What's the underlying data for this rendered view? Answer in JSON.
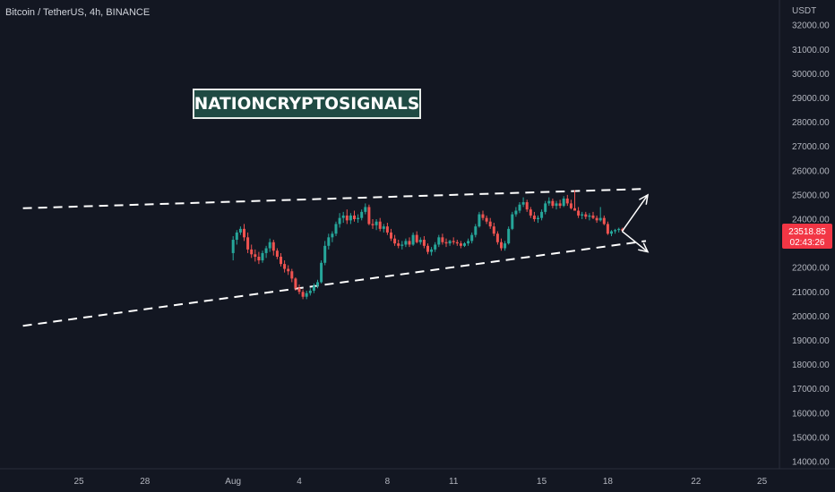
{
  "header": {
    "symbol_title": "Bitcoin / TetherUS, 4h, BINANCE"
  },
  "watermark": {
    "text": "NATIONCRYPTOSIGNALS"
  },
  "price_tag": {
    "price": "23518.85",
    "countdown": "02:43:26",
    "color": "#f23645"
  },
  "colors": {
    "background": "#131722",
    "up": "#26a69a",
    "down": "#ef5350",
    "axis_text": "#b2b5be"
  },
  "chart_data": {
    "type": "candlestick",
    "title": "Bitcoin / TetherUS, 4h, BINANCE",
    "y_unit": "USDT",
    "ylim": [
      14000,
      32000
    ],
    "y_ticks": [
      14000,
      15000,
      16000,
      17000,
      18000,
      19000,
      20000,
      21000,
      22000,
      23000,
      24000,
      25000,
      26000,
      27000,
      28000,
      29000,
      30000,
      31000,
      32000
    ],
    "x_tick_labels": [
      "25",
      "28",
      "Aug",
      "4",
      "8",
      "11",
      "15",
      "18",
      "22",
      "25"
    ],
    "x_tick_dates": [
      "2022-07-25",
      "2022-07-28",
      "2022-08-01",
      "2022-08-04",
      "2022-08-08",
      "2022-08-11",
      "2022-08-15",
      "2022-08-18",
      "2022-08-22",
      "2022-08-25"
    ],
    "last_price": 23518.85,
    "trendlines": {
      "upper": {
        "start": [
          "2022-07-21",
          24450
        ],
        "end": [
          "2022-08-19",
          25250
        ],
        "style": "dashed"
      },
      "lower": {
        "start": [
          "2022-07-21",
          19600
        ],
        "end": [
          "2022-08-19",
          23100
        ],
        "style": "dashed"
      }
    },
    "arrows": [
      {
        "from": [
          "2022-08-18",
          23500
        ],
        "to": [
          "2022-08-19",
          25000
        ]
      },
      {
        "from": [
          "2022-08-18",
          23500
        ],
        "to": [
          "2022-08-19",
          22650
        ]
      }
    ],
    "series": [
      {
        "values": [
          [
            22600,
            23300,
            22300,
            23150
          ],
          [
            23150,
            23550,
            22950,
            23450
          ],
          [
            23450,
            23700,
            23350,
            23600
          ],
          [
            23600,
            23800,
            23100,
            23250
          ],
          [
            23250,
            23450,
            22600,
            22750
          ],
          [
            22750,
            22950,
            22400,
            22550
          ],
          [
            22550,
            22750,
            22250,
            22450
          ],
          [
            22450,
            22650,
            22150,
            22300
          ],
          [
            22300,
            22700,
            22200,
            22600
          ],
          [
            22600,
            22900,
            22400,
            22800
          ],
          [
            22800,
            23200,
            22650,
            23050
          ],
          [
            23050,
            23150,
            22500,
            22700
          ],
          [
            22700,
            22800,
            22350,
            22450
          ],
          [
            22450,
            22600,
            22050,
            22150
          ],
          [
            22150,
            22300,
            21800,
            21950
          ],
          [
            21950,
            22100,
            21700,
            21850
          ],
          [
            21850,
            21950,
            21400,
            21550
          ],
          [
            21550,
            21600,
            21050,
            21150
          ],
          [
            21150,
            21300,
            20900,
            21000
          ],
          [
            21000,
            21100,
            20700,
            20800
          ],
          [
            20800,
            21050,
            20700,
            20950
          ],
          [
            20950,
            21150,
            20850,
            21050
          ],
          [
            21050,
            21350,
            20950,
            21250
          ],
          [
            21250,
            21500,
            21150,
            21400
          ],
          [
            21400,
            22300,
            21350,
            22200
          ],
          [
            22200,
            23100,
            22100,
            22900
          ],
          [
            22900,
            23400,
            22750,
            23250
          ],
          [
            23250,
            23500,
            23050,
            23400
          ],
          [
            23400,
            23900,
            23300,
            23800
          ],
          [
            23800,
            24250,
            23650,
            24050
          ],
          [
            24050,
            24300,
            23850,
            24150
          ],
          [
            24150,
            24400,
            23800,
            23950
          ],
          [
            23950,
            24250,
            23800,
            24150
          ],
          [
            24150,
            24350,
            23900,
            24000
          ],
          [
            24000,
            24200,
            23850,
            24050
          ],
          [
            24050,
            24400,
            23950,
            24300
          ],
          [
            24300,
            24650,
            24200,
            24500
          ],
          [
            24500,
            24600,
            23750,
            23800
          ],
          [
            23800,
            24000,
            23600,
            23750
          ],
          [
            23750,
            24000,
            23550,
            23900
          ],
          [
            23900,
            24050,
            23500,
            23600
          ],
          [
            23600,
            23800,
            23450,
            23700
          ],
          [
            23700,
            23850,
            23350,
            23450
          ],
          [
            23450,
            23600,
            23100,
            23200
          ],
          [
            23200,
            23350,
            22900,
            23000
          ],
          [
            23000,
            23150,
            22800,
            22900
          ],
          [
            22900,
            23100,
            22750,
            22950
          ],
          [
            22950,
            23200,
            22850,
            23100
          ],
          [
            23100,
            23250,
            22850,
            22950
          ],
          [
            22950,
            23450,
            22900,
            23350
          ],
          [
            23350,
            23500,
            23000,
            23050
          ],
          [
            23050,
            23250,
            22950,
            23150
          ],
          [
            23150,
            23300,
            22800,
            22900
          ],
          [
            22900,
            23000,
            22550,
            22650
          ],
          [
            22650,
            22850,
            22500,
            22750
          ],
          [
            22750,
            23050,
            22650,
            22950
          ],
          [
            22950,
            23350,
            22850,
            23250
          ],
          [
            23250,
            23400,
            22950,
            23050
          ],
          [
            23050,
            23200,
            22850,
            23000
          ],
          [
            23000,
            23150,
            22900,
            23100
          ],
          [
            23100,
            23250,
            22950,
            23050
          ],
          [
            23050,
            23150,
            22900,
            23000
          ],
          [
            23000,
            23100,
            22800,
            22900
          ],
          [
            22900,
            23050,
            22850,
            23000
          ],
          [
            23000,
            23200,
            22900,
            23100
          ],
          [
            23100,
            23450,
            23000,
            23350
          ],
          [
            23350,
            23800,
            23250,
            23700
          ],
          [
            23700,
            24300,
            23650,
            24200
          ],
          [
            24200,
            24350,
            23950,
            24050
          ],
          [
            24050,
            24150,
            23800,
            23900
          ],
          [
            23900,
            24050,
            23600,
            23700
          ],
          [
            23700,
            23850,
            23300,
            23400
          ],
          [
            23400,
            23500,
            22950,
            23050
          ],
          [
            23050,
            23200,
            22700,
            22800
          ],
          [
            22800,
            23100,
            22700,
            23000
          ],
          [
            23000,
            23700,
            22950,
            23600
          ],
          [
            23600,
            24300,
            23550,
            24200
          ],
          [
            24200,
            24500,
            24100,
            24350
          ],
          [
            24350,
            24700,
            24250,
            24600
          ],
          [
            24600,
            24900,
            24500,
            24700
          ],
          [
            24700,
            24800,
            24300,
            24400
          ],
          [
            24400,
            24500,
            24050,
            24150
          ],
          [
            24150,
            24300,
            23900,
            24000
          ],
          [
            24000,
            24150,
            23850,
            24050
          ],
          [
            24050,
            24400,
            23950,
            24300
          ],
          [
            24300,
            24750,
            24200,
            24650
          ],
          [
            24650,
            24900,
            24550,
            24750
          ],
          [
            24750,
            24850,
            24450,
            24550
          ],
          [
            24550,
            24750,
            24400,
            24650
          ],
          [
            24650,
            24800,
            24450,
            24550
          ],
          [
            24550,
            24950,
            24500,
            24850
          ],
          [
            24850,
            25000,
            24550,
            24650
          ],
          [
            24650,
            24800,
            24400,
            24450
          ],
          [
            24450,
            25200,
            24350,
            24350
          ],
          [
            24350,
            24500,
            24050,
            24150
          ],
          [
            24150,
            24300,
            24000,
            24200
          ],
          [
            24200,
            24300,
            24000,
            24100
          ],
          [
            24100,
            24250,
            23950,
            24150
          ],
          [
            24150,
            24300,
            24000,
            24050
          ],
          [
            24050,
            24150,
            23850,
            23950
          ],
          [
            23950,
            24500,
            23900,
            24050
          ],
          [
            24050,
            24150,
            23750,
            23800
          ],
          [
            23800,
            23900,
            23350,
            23400
          ],
          [
            23400,
            23550,
            23300,
            23500
          ],
          [
            23500,
            23600,
            23400,
            23550
          ],
          [
            23550,
            23650,
            23450,
            23600
          ],
          [
            23600,
            23650,
            23480,
            23518.85
          ]
        ]
      }
    ]
  }
}
